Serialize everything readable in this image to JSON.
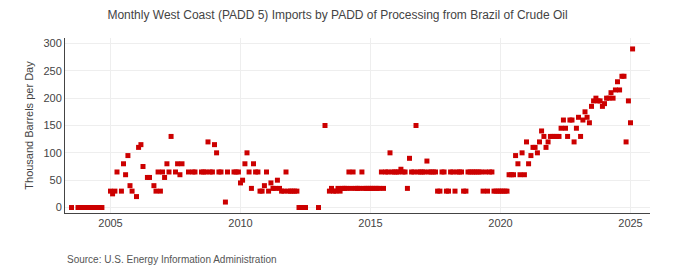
{
  "chart_data": {
    "type": "scatter",
    "title": "Monthly West Coast (PADD 5) Imports by PADD of Processing from Brazil of Crude Oil",
    "ylabel": "Thousand Barrels per Day",
    "annotations": [
      "Source: U.S. Energy Information Administration"
    ],
    "color": "#cc0000",
    "marker": "square",
    "grid": true,
    "xlim": [
      2003.25,
      2025.75
    ],
    "xticks": [
      2005,
      2010,
      2015,
      2020,
      2025
    ],
    "ylim": [
      -10,
      310
    ],
    "yticks": [
      0,
      50,
      100,
      150,
      200,
      250,
      300
    ],
    "x": [
      2003.5,
      2003.75,
      2003.83,
      2003.92,
      2004.0,
      2004.08,
      2004.17,
      2004.25,
      2004.33,
      2004.42,
      2004.5,
      2004.58,
      2004.67,
      2005.0,
      2005.08,
      2005.17,
      2005.25,
      2005.42,
      2005.5,
      2005.58,
      2005.67,
      2005.75,
      2005.83,
      2006.0,
      2006.08,
      2006.17,
      2006.25,
      2006.42,
      2006.5,
      2006.67,
      2006.75,
      2006.83,
      2006.92,
      2007.0,
      2007.08,
      2007.17,
      2007.25,
      2007.33,
      2007.5,
      2007.58,
      2007.67,
      2007.75,
      2008.0,
      2008.17,
      2008.25,
      2008.5,
      2008.58,
      2008.67,
      2008.75,
      2008.83,
      2008.92,
      2009.0,
      2009.08,
      2009.17,
      2009.25,
      2009.42,
      2009.5,
      2009.75,
      2009.83,
      2009.92,
      2010.0,
      2010.08,
      2010.17,
      2010.25,
      2010.33,
      2010.42,
      2010.5,
      2010.58,
      2010.67,
      2010.75,
      2010.83,
      2010.92,
      2011.0,
      2011.08,
      2011.17,
      2011.25,
      2011.33,
      2011.42,
      2011.5,
      2011.58,
      2011.67,
      2011.75,
      2011.83,
      2011.92,
      2012.0,
      2012.08,
      2012.17,
      2012.25,
      2012.33,
      2012.42,
      2012.5,
      2013.0,
      2013.25,
      2013.42,
      2013.5,
      2013.58,
      2013.67,
      2013.75,
      2013.83,
      2013.92,
      2014.0,
      2014.08,
      2014.17,
      2014.25,
      2014.33,
      2014.42,
      2014.5,
      2014.58,
      2014.67,
      2014.75,
      2014.83,
      2014.92,
      2015.0,
      2015.08,
      2015.17,
      2015.25,
      2015.33,
      2015.42,
      2015.5,
      2015.58,
      2015.67,
      2015.75,
      2015.83,
      2015.92,
      2016.0,
      2016.08,
      2016.17,
      2016.25,
      2016.33,
      2016.42,
      2016.5,
      2016.58,
      2016.67,
      2016.75,
      2016.83,
      2016.92,
      2017.0,
      2017.08,
      2017.17,
      2017.25,
      2017.33,
      2017.42,
      2017.5,
      2017.58,
      2017.67,
      2017.75,
      2017.83,
      2017.92,
      2018.0,
      2018.08,
      2018.17,
      2018.25,
      2018.33,
      2018.42,
      2018.5,
      2018.58,
      2018.67,
      2018.75,
      2018.83,
      2018.92,
      2019.0,
      2019.08,
      2019.17,
      2019.25,
      2019.33,
      2019.42,
      2019.5,
      2019.58,
      2019.67,
      2019.75,
      2019.83,
      2019.92,
      2020.0,
      2020.08,
      2020.17,
      2020.25,
      2020.33,
      2020.42,
      2020.5,
      2020.58,
      2020.67,
      2020.75,
      2020.83,
      2020.92,
      2021.0,
      2021.08,
      2021.17,
      2021.25,
      2021.33,
      2021.42,
      2021.5,
      2021.58,
      2021.67,
      2021.75,
      2021.83,
      2021.92,
      2022.0,
      2022.08,
      2022.17,
      2022.25,
      2022.33,
      2022.42,
      2022.5,
      2022.58,
      2022.67,
      2022.75,
      2022.83,
      2022.92,
      2023.0,
      2023.08,
      2023.17,
      2023.25,
      2023.33,
      2023.42,
      2023.5,
      2023.58,
      2023.67,
      2023.75,
      2023.83,
      2023.92,
      2024.0,
      2024.08,
      2024.17,
      2024.25,
      2024.33,
      2024.42,
      2024.5,
      2024.58,
      2024.67,
      2024.75,
      2024.83,
      2024.92,
      2025.0,
      2025.08
    ],
    "values": [
      0,
      0,
      0,
      0,
      0,
      0,
      0,
      0,
      0,
      0,
      0,
      0,
      0,
      30,
      25,
      30,
      65,
      30,
      80,
      60,
      95,
      40,
      30,
      20,
      110,
      115,
      75,
      55,
      55,
      40,
      30,
      65,
      30,
      65,
      55,
      80,
      65,
      130,
      65,
      80,
      60,
      80,
      65,
      65,
      65,
      65,
      65,
      65,
      120,
      65,
      65,
      115,
      100,
      65,
      65,
      10,
      65,
      65,
      65,
      65,
      45,
      50,
      80,
      100,
      65,
      35,
      80,
      65,
      65,
      30,
      30,
      40,
      65,
      30,
      45,
      35,
      35,
      50,
      35,
      30,
      30,
      65,
      30,
      30,
      30,
      30,
      30,
      0,
      0,
      0,
      0,
      0,
      150,
      30,
      35,
      30,
      30,
      35,
      30,
      35,
      35,
      35,
      65,
      35,
      65,
      35,
      35,
      35,
      65,
      35,
      35,
      35,
      35,
      35,
      35,
      35,
      35,
      65,
      35,
      65,
      65,
      100,
      65,
      65,
      65,
      65,
      70,
      65,
      65,
      35,
      90,
      65,
      65,
      150,
      65,
      65,
      65,
      65,
      85,
      65,
      65,
      65,
      65,
      30,
      30,
      65,
      65,
      30,
      30,
      65,
      65,
      30,
      65,
      65,
      65,
      30,
      30,
      65,
      65,
      65,
      65,
      65,
      65,
      65,
      30,
      65,
      30,
      65,
      65,
      30,
      30,
      30,
      30,
      30,
      30,
      30,
      60,
      60,
      60,
      95,
      80,
      60,
      100,
      60,
      120,
      80,
      95,
      110,
      110,
      100,
      120,
      140,
      130,
      110,
      120,
      130,
      130,
      130,
      130,
      130,
      145,
      160,
      145,
      130,
      160,
      160,
      120,
      145,
      165,
      130,
      160,
      175,
      165,
      155,
      185,
      195,
      200,
      195,
      195,
      185,
      190,
      200,
      200,
      210,
      200,
      215,
      230,
      215,
      240,
      240,
      120,
      195,
      155,
      290
    ]
  }
}
